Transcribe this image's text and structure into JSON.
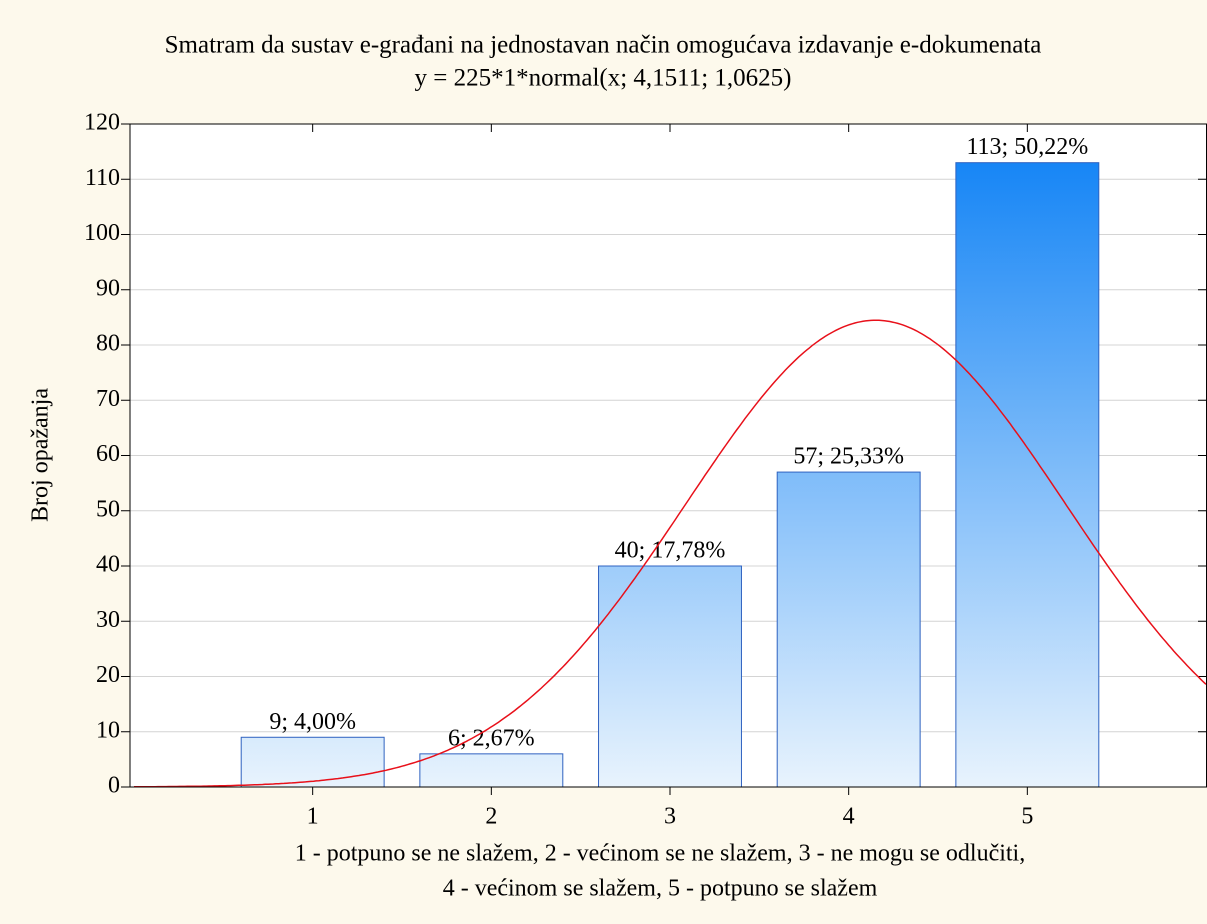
{
  "chart_data": {
    "type": "bar",
    "title": "Smatram  da  sustav e-građani na jednostavan način omogućava izdavanje e-dokumenata",
    "subtitle": "y = 225*1*normal(x; 4,1511; 1,0625)",
    "ylabel": "Broj opažanja",
    "xlabel": [
      "1 - potpuno se ne slažem, 2 - većinom se ne slažem, 3 - ne mogu se odlučiti,",
      "4 - većinom se slažem, 5 - potpuno se slažem"
    ],
    "x": [
      1,
      2,
      3,
      4,
      5
    ],
    "values": [
      9,
      6,
      40,
      57,
      113
    ],
    "value_labels": [
      "9; 4,00%",
      "6; 2,67%",
      "40; 17,78%",
      "57; 25,33%",
      "113; 50,22%"
    ],
    "color": "#1a86f7",
    "xlim": [
      0,
      6
    ],
    "xticks": [
      1,
      2,
      3,
      4,
      5
    ],
    "ylim": [
      0,
      120
    ],
    "yticks": [
      0,
      10,
      20,
      30,
      40,
      50,
      60,
      70,
      80,
      90,
      100,
      110,
      120
    ],
    "grid": true,
    "fit": {
      "n": 225,
      "mean": 4.1511,
      "sd": 1.0625,
      "color": "#e8101a"
    }
  }
}
